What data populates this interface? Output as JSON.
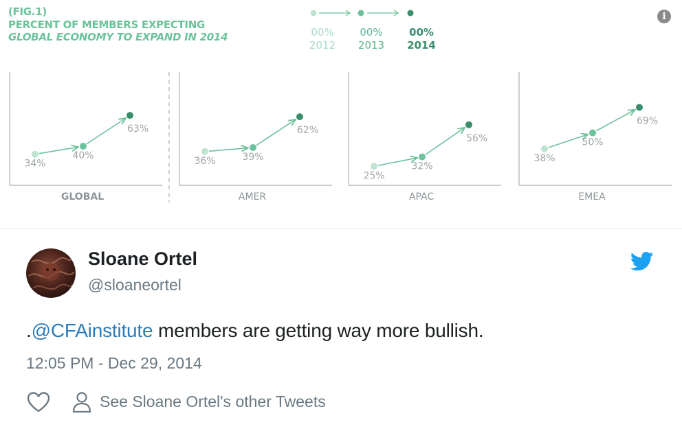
{
  "figure": {
    "label": "(FIG.1)",
    "title_line1": "PERCENT OF MEMBERS EXPECTING",
    "title_line2_italic": "GLOBAL ECONOMY",
    "title_line2_rest": " TO EXPAND IN 2014",
    "legend": [
      {
        "pct": "00%",
        "year": "2012"
      },
      {
        "pct": "00%",
        "year": "2013"
      },
      {
        "pct": "00%",
        "year": "2014"
      }
    ],
    "info_icon": "info-icon",
    "colors": {
      "y2012": "#bfe3d1",
      "y2013": "#6cc29b",
      "y2014": "#3a8e6c",
      "label": "#9ea4a8"
    }
  },
  "chart_data": {
    "type": "line",
    "categories": [
      "GLOBAL",
      "AMER",
      "APAC",
      "EMEA"
    ],
    "x": [
      "2012",
      "2013",
      "2014"
    ],
    "ylim": [
      0,
      100
    ],
    "series": [
      {
        "name": "GLOBAL",
        "values": [
          34,
          40,
          63
        ],
        "labels": [
          "34%",
          "40%",
          "63%"
        ]
      },
      {
        "name": "AMER",
        "values": [
          36,
          39,
          62
        ],
        "labels": [
          "36%",
          "39%",
          "62%"
        ]
      },
      {
        "name": "APAC",
        "values": [
          25,
          32,
          56
        ],
        "labels": [
          "25%",
          "32%",
          "56%"
        ]
      },
      {
        "name": "EMEA",
        "values": [
          38,
          50,
          69
        ],
        "labels": [
          "38%",
          "50%",
          "69%"
        ]
      }
    ]
  },
  "tweet": {
    "author_name": "Sloane Ortel",
    "author_handle": "@sloaneortel",
    "text_prefix": ".",
    "mention": "@CFAinstitute",
    "text_rest": " members are getting way more bullish.",
    "timestamp": "12:05 PM - Dec 29, 2014",
    "other_tweets_label": "See Sloane Ortel's other Tweets",
    "colors": {
      "mention": "#2b7bb9",
      "twitter_blue": "#1da1f2",
      "meta": "#697882"
    }
  }
}
